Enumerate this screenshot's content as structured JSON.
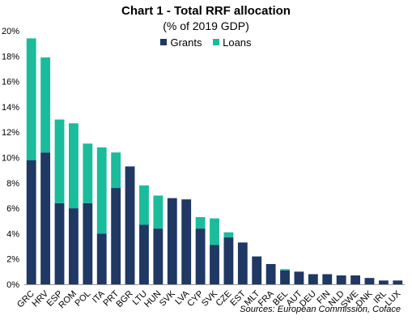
{
  "chart_data": {
    "type": "bar",
    "stacked": true,
    "title": "Chart 1 - Total RRF allocation",
    "subtitle": "(% of  2019 GDP)",
    "categories": [
      "GRC",
      "HRV",
      "ESP",
      "ROM",
      "POL",
      "ITA",
      "PRT",
      "BGR",
      "LTU",
      "HUN",
      "SVK",
      "LVA",
      "CYP",
      "SVK",
      "CZE",
      "EST",
      "MLT",
      "FRA",
      "BEL",
      "AUT",
      "DEU",
      "FIN",
      "NLD",
      "SWE",
      "DNK",
      "IRL",
      "LUX"
    ],
    "series": [
      {
        "name": "Grants",
        "color": "#1f3864",
        "values": [
          9.8,
          10.4,
          6.4,
          6.0,
          6.4,
          4.0,
          7.6,
          9.3,
          4.7,
          4.4,
          6.8,
          6.7,
          4.4,
          3.1,
          3.7,
          3.3,
          2.2,
          1.6,
          1.1,
          1.0,
          0.8,
          0.8,
          0.7,
          0.7,
          0.5,
          0.3,
          0.3
        ]
      },
      {
        "name": "Loans",
        "color": "#1abc9c",
        "values": [
          9.6,
          7.5,
          6.6,
          6.7,
          4.7,
          6.8,
          2.8,
          0.0,
          3.1,
          2.6,
          0.0,
          0.0,
          0.9,
          2.1,
          0.4,
          0.0,
          0.0,
          0.0,
          0.1,
          0.0,
          0.0,
          0.0,
          0.0,
          0.0,
          0.0,
          0.0,
          0.0
        ]
      }
    ],
    "yaxis": {
      "min": 0,
      "max": 20,
      "step": 2,
      "tick_suffix": "%"
    },
    "legend_position": "top",
    "grid": false,
    "source": "Sources: European Commission, Coface"
  }
}
